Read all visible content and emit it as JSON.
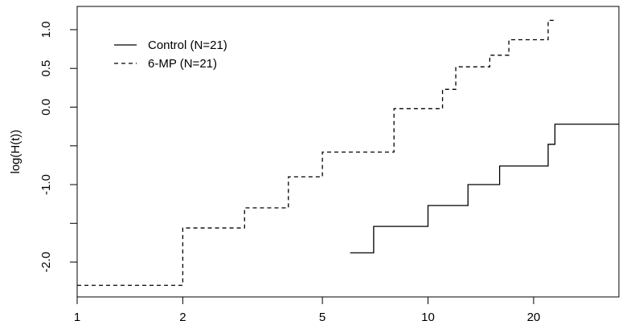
{
  "chart_data": {
    "type": "line",
    "ylabel": "log(H(t))",
    "xlabel": "",
    "x_scale": "log",
    "xlim": [
      1,
      35
    ],
    "ylim": [
      -2.45,
      1.3
    ],
    "x_ticks": [
      1,
      2,
      5,
      10,
      20
    ],
    "x_tick_labels": [
      "1",
      "2",
      "5",
      "10",
      "20"
    ],
    "y_ticks": [
      -2.0,
      -1.0,
      0.0,
      0.5,
      1.0
    ],
    "y_tick_labels": [
      "-2.0",
      "-1.0",
      "0.0",
      "0.5",
      "1.0"
    ],
    "y_minor_ticks": [
      -1.5,
      -0.5
    ],
    "grid": false,
    "legend_position": "top-left",
    "series": [
      {
        "name": "Control (N=21)",
        "line_style": "solid",
        "color": "#000000",
        "x": [
          6,
          7,
          10,
          13,
          16,
          22,
          23,
          35
        ],
        "y": [
          -1.88,
          -1.54,
          -1.27,
          -1.0,
          -0.76,
          -0.48,
          -0.22,
          -0.22
        ]
      },
      {
        "name": "6-MP (N=21)",
        "line_style": "dashed",
        "color": "#000000",
        "x": [
          1,
          2,
          3,
          4,
          5,
          8,
          11,
          12,
          15,
          17,
          22,
          23
        ],
        "y": [
          -2.3,
          -1.56,
          -1.3,
          -0.9,
          -0.58,
          -0.02,
          0.23,
          0.52,
          0.67,
          0.87,
          1.12,
          1.12
        ]
      }
    ]
  }
}
